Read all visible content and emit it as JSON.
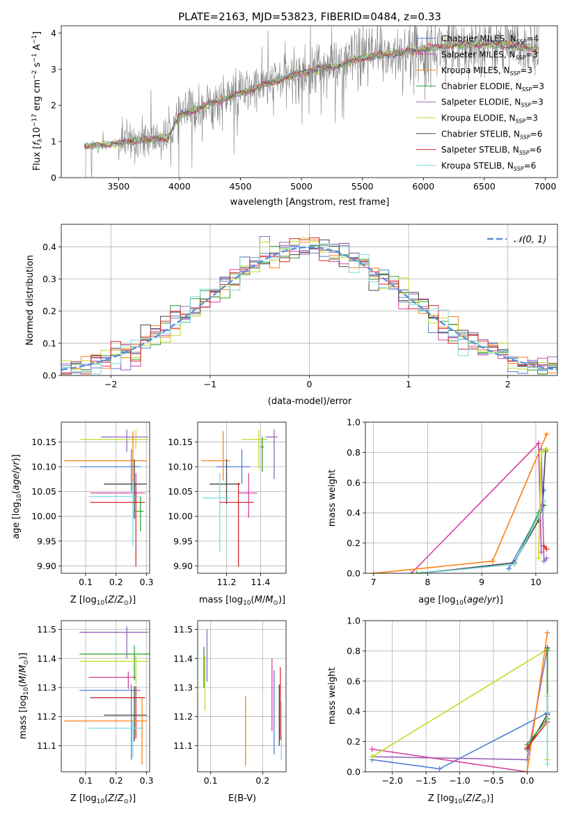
{
  "chart_data": [
    {
      "id": "spectrum",
      "type": "line",
      "title": "PLATE=2163, MJD=53823, FIBERID=0484, z=0.33",
      "xlabel": "wavelength [Angstrom, rest frame]",
      "ylabel": "Flux [f_λ 10^-17 erg cm^-2 s^-1 A^-1]",
      "xlim": [
        3030,
        7100
      ],
      "ylim": [
        0,
        4.2
      ],
      "xticks": [
        3500,
        4000,
        4500,
        5000,
        5500,
        6000,
        6500,
        7000
      ],
      "yticks": [
        0,
        1,
        2,
        3,
        4
      ],
      "grid": false,
      "legend_position": "top-right",
      "legend": [
        {
          "label": "Chabrier MILES, N_SSP=4",
          "color": "#4f7ed6"
        },
        {
          "label": "Salpeter MILES, N_SSP=3",
          "color": "#d6409f"
        },
        {
          "label": "Kroupa MILES, N_SSP=3",
          "color": "#ff7f0e"
        },
        {
          "label": "Chabrier ELODIE, N_SSP=3",
          "color": "#2ca02c"
        },
        {
          "label": "Salpeter ELODIE, N_SSP=3",
          "color": "#9467bd"
        },
        {
          "label": "Kroupa ELODIE, N_SSP=3",
          "color": "#bcdd22"
        },
        {
          "label": "Chabrier STELIB, N_SSP=6",
          "color": "#444444"
        },
        {
          "label": "Salpeter STELIB, N_SSP=6",
          "color": "#d62728"
        },
        {
          "label": "Kroupa STELIB, N_SSP=6",
          "color": "#7fd8e0"
        }
      ],
      "data_color": "#808080",
      "continuum_x": [
        3200,
        3500,
        3700,
        3900,
        4000,
        4300,
        4600,
        4860,
        5000,
        5300,
        5500,
        5800,
        6000,
        6300,
        6500,
        6700,
        6950
      ],
      "continuum_y": [
        0.85,
        0.95,
        1.05,
        1.1,
        1.7,
        2.1,
        2.45,
        2.75,
        2.9,
        3.1,
        3.3,
        3.45,
        3.55,
        3.7,
        3.7,
        3.65,
        3.55
      ]
    },
    {
      "id": "residuals",
      "type": "histogram",
      "xlabel": "(data-model)/error",
      "ylabel": "Normed distribution",
      "xlim": [
        -2.5,
        2.5
      ],
      "ylim": [
        0,
        0.47
      ],
      "xticks": [
        -2,
        -1,
        0,
        1,
        2
      ],
      "yticks": [
        0.0,
        0.1,
        0.2,
        0.3,
        0.4
      ],
      "grid": true,
      "legend_position": "top-right",
      "gaussian_label": "𝒩(0, 1)",
      "gaussian_color": "#5b8fd6",
      "bin_width": 0.1,
      "bin_start": -2.5
    },
    {
      "id": "age_vs_Z",
      "type": "scatter",
      "xlabel": "Z [log10(Z/Z⊙)]",
      "ylabel": "age [log10(age/yr)]",
      "xlim": [
        0.02,
        0.31
      ],
      "ylim": [
        9.885,
        10.19
      ],
      "xticks": [
        0.1,
        0.2,
        0.3
      ],
      "yticks": [
        9.9,
        9.95,
        10.0,
        10.05,
        10.1,
        10.15
      ],
      "points": [
        {
          "x": 0.235,
          "y": 10.16,
          "xerr": [
            0.085,
            0.07
          ],
          "yerr": [
            0.03,
            0.015
          ],
          "color": "#9467bd"
        },
        {
          "x": 0.265,
          "y": 10.155,
          "xerr": [
            0.185,
            0.04
          ],
          "yerr": [
            0.02,
            0.02
          ],
          "color": "#bcdd22"
        },
        {
          "x": 0.255,
          "y": 10.112,
          "xerr": [
            0.225,
            0.045
          ],
          "yerr": [
            0.06,
            0.06
          ],
          "color": "#ff7f0e"
        },
        {
          "x": 0.25,
          "y": 10.1,
          "xerr": [
            0.17,
            0.03
          ],
          "yerr": [
            0.05,
            0.035
          ],
          "color": "#4f7ed6"
        },
        {
          "x": 0.26,
          "y": 10.065,
          "xerr": [
            0.1,
            0.04
          ],
          "yerr": [
            0.07,
            0.05
          ],
          "color": "#444444"
        },
        {
          "x": 0.265,
          "y": 10.047,
          "xerr": [
            0.15,
            0.03
          ],
          "yerr": [
            0.02,
            0.04
          ],
          "color": "#d6409f"
        },
        {
          "x": 0.255,
          "y": 10.04,
          "xerr": [
            0.145,
            0.02
          ],
          "yerr": [
            0.1,
            0.03
          ],
          "color": "#7fd8e0"
        },
        {
          "x": 0.265,
          "y": 10.028,
          "xerr": [
            0.15,
            0.03
          ],
          "yerr": [
            0.13,
            0.04
          ],
          "color": "#d62728"
        },
        {
          "x": 0.28,
          "y": 10.01,
          "xerr": [
            0.02,
            0.01
          ],
          "yerr": [
            0.04,
            0.03
          ],
          "color": "#2ca02c"
        }
      ]
    },
    {
      "id": "age_vs_mass",
      "type": "scatter",
      "xlabel": "mass [log10(M/M⊙)]",
      "ylabel": "",
      "xlim": [
        11.03,
        11.55
      ],
      "ylim": [
        9.885,
        10.19
      ],
      "xticks": [
        11.2,
        11.4
      ],
      "yticks": [
        9.9,
        9.95,
        10.0,
        10.05,
        10.1,
        10.15
      ],
      "points": [
        {
          "x": 11.48,
          "y": 10.16,
          "xerr": [
            0.05,
            0.02
          ],
          "yerr": [
            0.085,
            0.015
          ],
          "color": "#9467bd"
        },
        {
          "x": 11.39,
          "y": 10.155,
          "xerr": [
            0.1,
            0.05
          ],
          "yerr": [
            0.06,
            0.02
          ],
          "color": "#bcdd22"
        },
        {
          "x": 11.18,
          "y": 10.112,
          "xerr": [
            0.13,
            0.04
          ],
          "yerr": [
            0.04,
            0.06
          ],
          "color": "#ff7f0e"
        },
        {
          "x": 11.29,
          "y": 10.1,
          "xerr": [
            0.15,
            0.05
          ],
          "yerr": [
            0.035,
            0.035
          ],
          "color": "#4f7ed6"
        },
        {
          "x": 11.2,
          "y": 10.065,
          "xerr": [
            0.1,
            0.08
          ],
          "yerr": [
            0.04,
            0.05
          ],
          "color": "#444444"
        },
        {
          "x": 11.33,
          "y": 10.047,
          "xerr": [
            0.06,
            0.05
          ],
          "yerr": [
            0.05,
            0.04
          ],
          "color": "#d6409f"
        },
        {
          "x": 11.16,
          "y": 10.037,
          "xerr": [
            0.1,
            0.06
          ],
          "yerr": [
            0.11,
            0.05
          ],
          "color": "#7fd8e0"
        },
        {
          "x": 11.27,
          "y": 10.028,
          "xerr": [
            0.11,
            0.09
          ],
          "yerr": [
            0.13,
            0.04
          ],
          "color": "#d62728"
        },
        {
          "x": 11.41,
          "y": 10.14,
          "xerr": [
            0.01,
            0.01
          ],
          "yerr": [
            0.05,
            0.02
          ],
          "color": "#2ca02c"
        }
      ]
    },
    {
      "id": "weight_vs_age",
      "type": "line",
      "xlabel": "age [log10(age/yr)]",
      "ylabel": "mass weight",
      "xlim": [
        6.85,
        10.4
      ],
      "ylim": [
        0,
        1
      ],
      "xticks": [
        7,
        8,
        9,
        10
      ],
      "yticks": [
        0.0,
        0.2,
        0.4,
        0.6,
        0.8,
        1.0
      ],
      "grid": true,
      "series": [
        {
          "color": "#d6409f",
          "x": [
            7.7,
            10.05,
            10.1
          ],
          "y": [
            0.0,
            0.86,
            0.14
          ]
        },
        {
          "color": "#ff7f0e",
          "x": [
            7.0,
            9.2,
            10.2
          ],
          "y": [
            0.0,
            0.08,
            0.92
          ]
        },
        {
          "color": "#4f7ed6",
          "x": [
            9.5,
            10.1,
            10.15
          ],
          "y": [
            0.03,
            0.42,
            0.55
          ]
        },
        {
          "color": "#2ca02c",
          "x": [
            7.8,
            9.6,
            10.05,
            10.15
          ],
          "y": [
            0.0,
            0.06,
            0.4,
            0.45
          ]
        },
        {
          "color": "#444444",
          "x": [
            7.9,
            9.6,
            10.05,
            10.12,
            10.18
          ],
          "y": [
            0.0,
            0.07,
            0.35,
            0.45,
            0.81
          ]
        },
        {
          "color": "#7fd8e0",
          "x": [
            7.9,
            9.6,
            10.05,
            10.15
          ],
          "y": [
            0.0,
            0.06,
            0.38,
            0.48
          ]
        },
        {
          "color": "#9467bd",
          "x": [
            10.1,
            10.15,
            10.2
          ],
          "y": [
            0.82,
            0.08,
            0.1
          ]
        },
        {
          "color": "#bcdd22",
          "x": [
            10.05,
            10.1,
            10.2
          ],
          "y": [
            0.1,
            0.8,
            0.82
          ]
        },
        {
          "color": "#d62728",
          "x": [
            10.15,
            10.2
          ],
          "y": [
            0.18,
            0.16
          ]
        }
      ]
    },
    {
      "id": "mass_vs_Z",
      "type": "scatter",
      "xlabel": "Z [log10(Z/Z⊙)]",
      "ylabel": "mass [log10(M/M⊙)]",
      "xlim": [
        0.02,
        0.31
      ],
      "ylim": [
        11.01,
        11.53
      ],
      "xticks": [
        0.1,
        0.2,
        0.3
      ],
      "yticks": [
        11.1,
        11.2,
        11.3,
        11.4,
        11.5
      ],
      "points": [
        {
          "x": 0.235,
          "y": 11.49,
          "xerr": [
            0.155,
            0.07
          ],
          "yerr": [
            0.09,
            0.02
          ],
          "color": "#9467bd"
        },
        {
          "x": 0.26,
          "y": 11.415,
          "xerr": [
            0.18,
            0.05
          ],
          "yerr": [
            0.09,
            0.03
          ],
          "color": "#2ca02c"
        },
        {
          "x": 0.265,
          "y": 11.39,
          "xerr": [
            0.185,
            0.04
          ],
          "yerr": [
            0.08,
            0.02
          ],
          "color": "#bcdd22"
        },
        {
          "x": 0.24,
          "y": 11.335,
          "xerr": [
            0.13,
            0.025
          ],
          "yerr": [
            0.04,
            0.02
          ],
          "color": "#d6409f"
        },
        {
          "x": 0.25,
          "y": 11.29,
          "xerr": [
            0.17,
            0.03
          ],
          "yerr": [
            0.24,
            0.02
          ],
          "color": "#4f7ed6"
        },
        {
          "x": 0.265,
          "y": 11.265,
          "xerr": [
            0.15,
            0.03
          ],
          "yerr": [
            0.14,
            0.04
          ],
          "color": "#d62728"
        },
        {
          "x": 0.26,
          "y": 11.205,
          "xerr": [
            0.1,
            0.04
          ],
          "yerr": [
            0.09,
            0.1
          ],
          "color": "#444444"
        },
        {
          "x": 0.285,
          "y": 11.185,
          "xerr": [
            0.255,
            0.015
          ],
          "yerr": [
            0.15,
            0.08
          ],
          "color": "#ff7f0e"
        },
        {
          "x": 0.255,
          "y": 11.16,
          "xerr": [
            0.145,
            0.035
          ],
          "yerr": [
            0.1,
            0.03
          ],
          "color": "#7fd8e0"
        }
      ]
    },
    {
      "id": "mass_vs_ebv",
      "type": "scatter",
      "xlabel": "E(B-V)",
      "ylabel": "",
      "xlim": [
        0.075,
        0.245
      ],
      "ylim": [
        11.01,
        11.53
      ],
      "xticks": [
        0.1,
        0.2
      ],
      "yticks": [
        11.1,
        11.2,
        11.3,
        11.4,
        11.5
      ],
      "vlines": [
        {
          "x": 0.093,
          "y0": 11.32,
          "y1": 11.5,
          "color": "#9467bd"
        },
        {
          "x": 0.087,
          "y0": 11.3,
          "y1": 11.44,
          "color": "#2ca02c"
        },
        {
          "x": 0.089,
          "y0": 11.22,
          "y1": 11.41,
          "color": "#bcdd22"
        },
        {
          "x": 0.167,
          "y0": 11.03,
          "y1": 11.27,
          "color": "#ff7f0e"
        },
        {
          "x": 0.218,
          "y0": 11.15,
          "y1": 11.4,
          "color": "#d6409f"
        },
        {
          "x": 0.222,
          "y0": 11.07,
          "y1": 11.36,
          "color": "#4f7ed6"
        },
        {
          "x": 0.234,
          "y0": 11.12,
          "y1": 11.37,
          "color": "#d62728"
        },
        {
          "x": 0.232,
          "y0": 11.1,
          "y1": 11.31,
          "color": "#444444"
        },
        {
          "x": 0.236,
          "y0": 11.05,
          "y1": 11.25,
          "color": "#7fd8e0"
        }
      ]
    },
    {
      "id": "weight_vs_Z",
      "type": "line",
      "xlabel": "Z [log10(Z/Z⊙)]",
      "ylabel": "mass weight",
      "xlim": [
        -2.4,
        0.45
      ],
      "ylim": [
        0,
        1
      ],
      "xticks": [
        -2.0,
        -1.5,
        -1.0,
        -0.5,
        0.0
      ],
      "yticks": [
        0.0,
        0.2,
        0.4,
        0.6,
        0.8,
        1.0
      ],
      "grid": true,
      "series": [
        {
          "color": "#4f7ed6",
          "x": [
            -2.3,
            -1.3,
            0.3
          ],
          "y": [
            0.08,
            0.02,
            0.39
          ]
        },
        {
          "color": "#9467bd",
          "x": [
            -2.3,
            0.0,
            0.3
          ],
          "y": [
            0.1,
            0.08,
            0.82
          ]
        },
        {
          "color": "#d6409f",
          "x": [
            -2.3,
            0.0
          ],
          "y": [
            0.15,
            0.0
          ]
        },
        {
          "color": "#bcdd22",
          "x": [
            -2.3,
            0.3,
            0.3
          ],
          "y": [
            0.1,
            0.81,
            0.08
          ]
        },
        {
          "color": "#ff7f0e",
          "x": [
            0.0,
            0.3
          ],
          "y": [
            0.0,
            0.92
          ]
        },
        {
          "color": "#444444",
          "x": [
            0.0,
            0.3,
            0.3
          ],
          "y": [
            0.15,
            0.38,
            0.82
          ]
        },
        {
          "color": "#2ca02c",
          "x": [
            0.0,
            0.3,
            0.3
          ],
          "y": [
            0.18,
            0.35,
            0.8
          ]
        },
        {
          "color": "#d62728",
          "x": [
            0.0,
            0.3
          ],
          "y": [
            0.16,
            0.33
          ]
        },
        {
          "color": "#7fd8e0",
          "x": [
            0.3,
            0.3
          ],
          "y": [
            0.5,
            0.05
          ]
        }
      ]
    }
  ]
}
